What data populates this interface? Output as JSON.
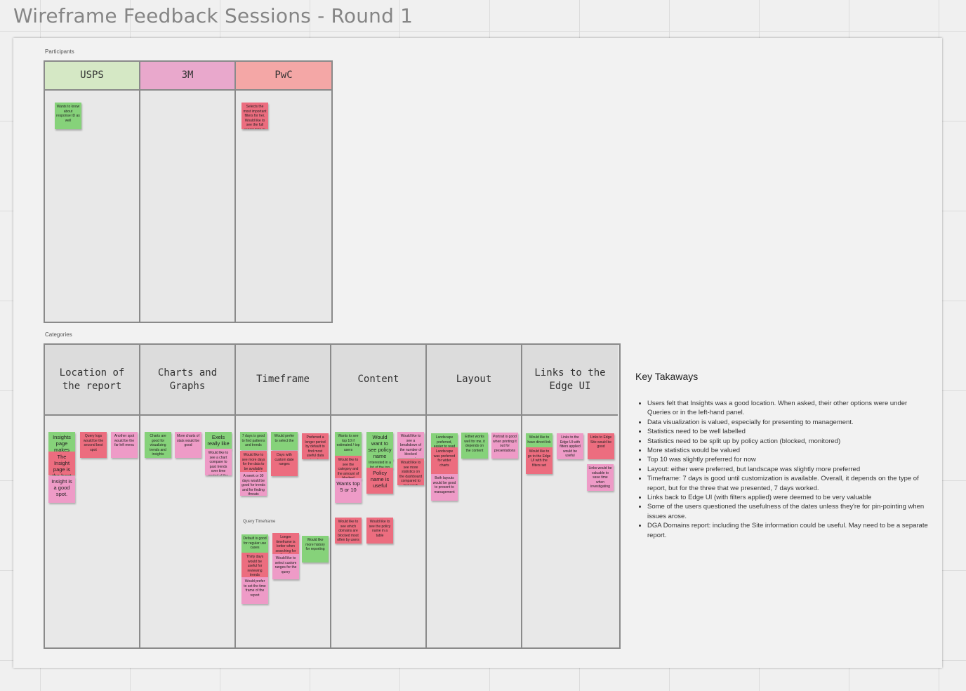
{
  "board": {
    "title": "Wireframe Feedback Sessions - Round 1"
  },
  "participants": {
    "caption": "Participants",
    "columns": [
      {
        "label": "USPS",
        "color": "#d5e8c5",
        "notes": [
          {
            "text": "Wants to know about response ID as well",
            "color": "green"
          }
        ]
      },
      {
        "label": "3M",
        "color": "#e9a8cc",
        "notes": []
      },
      {
        "label": "PwC",
        "color": "#f4a7a6",
        "notes": [
          {
            "text": "Selects the most important filters for her. Would like to see the full report data in one table",
            "color": "red"
          }
        ]
      }
    ]
  },
  "categories": {
    "caption": "Categories",
    "columns": [
      {
        "label": "Location of the report",
        "notes": [
          {
            "text": "Insights page makes sense",
            "color": "green"
          },
          {
            "text": "Query logs would be the second best spot",
            "color": "red"
          },
          {
            "text": "Another spot would be the far left menu",
            "color": "pink"
          },
          {
            "text": "The Insight page is the best edge location",
            "color": "red"
          },
          {
            "text": "Insight is a good spot.",
            "color": "pink"
          }
        ]
      },
      {
        "label": "Charts and Graphs",
        "notes": [
          {
            "text": "Charts are good for visualizing trends and insights",
            "color": "green"
          },
          {
            "text": "More charts of stats would be good",
            "color": "pink"
          },
          {
            "text": "Exels really like",
            "color": "green"
          },
          {
            "text": "Would like to see a chart compare to past trends over time period of the data",
            "color": "pink"
          }
        ]
      },
      {
        "label": "Timeframe",
        "notes": [
          {
            "text": "7 days is good to find patterns and trends",
            "color": "green"
          },
          {
            "text": "Would prefer to select the",
            "color": "green"
          },
          {
            "text": "Preferred a longer period by default to find most useful data trends",
            "color": "red"
          },
          {
            "text": "Would like to see more days for the data to be available and to find trends over time",
            "color": "red"
          },
          {
            "text": "Days with custom date ranges",
            "color": "red"
          },
          {
            "text": "A week or 30 days would be good for trends and for finding threats",
            "color": "pink"
          }
        ]
      },
      {
        "label": "Content",
        "notes": [
          {
            "text": "Wants to see top 10 if estimated / top users",
            "color": "green"
          },
          {
            "text": "Would want to see policy name",
            "color": "green"
          },
          {
            "text": "Would like to see a breakdown of the number of blocked requests",
            "color": "pink"
          },
          {
            "text": "Would like to see the category and the amount of blocked requests",
            "color": "red"
          },
          {
            "text": "Interested in a list of the top threats and domains",
            "color": "green"
          },
          {
            "text": "Would like to see more statistics on the dashboard compared to last week",
            "color": "red"
          },
          {
            "text": "Wants top 5 or 10",
            "color": "pink"
          },
          {
            "text": "Policy name is useful",
            "color": "red"
          },
          {
            "text": "Would like to see which domains are blocked most often by users",
            "color": "red"
          },
          {
            "text": "Would like to see the policy name in a table",
            "color": "red"
          }
        ]
      },
      {
        "label": "Layout",
        "notes": [
          {
            "text": "Landscape preferred, easier to read",
            "color": "green"
          },
          {
            "text": "Either works well for me, it depends on the content",
            "color": "green"
          },
          {
            "text": "Portrait is good when printing it out for presentations",
            "color": "pink"
          },
          {
            "text": "Landscape was preferred for wider charts",
            "color": "red"
          },
          {
            "text": "Both layouts would be good to present to management",
            "color": "pink"
          }
        ]
      },
      {
        "label": "Links to the Edge UI",
        "notes": [
          {
            "text": "Would like to have direct link",
            "color": "green"
          },
          {
            "text": "Links to the Edge UI with filters applied would be useful",
            "color": "pink"
          },
          {
            "text": "Links to Edge Site would be good",
            "color": "red"
          },
          {
            "text": "Would like to go to the Edge UI with the filters set",
            "color": "red"
          },
          {
            "text": "Links would be valuable to save time when investigating",
            "color": "pink"
          }
        ]
      }
    ],
    "query_timeframe": {
      "caption": "Query Timeframe",
      "notes": [
        {
          "text": "Default is good for regular use cases",
          "color": "green"
        },
        {
          "text": "Longer timeframe is better when searching for threats",
          "color": "red"
        },
        {
          "text": "Would like more history for reporting",
          "color": "green"
        },
        {
          "text": "Thirty days would be useful for reviewing trends",
          "color": "red"
        },
        {
          "text": "Would like to select custom ranges for the query",
          "color": "pink"
        },
        {
          "text": "Would prefer to set the time frame of the report",
          "color": "pink"
        }
      ]
    }
  },
  "takeaways": {
    "title": "Key Takaways",
    "items": [
      "Users felt that Insights was a good location. When asked, their other options were under Queries or in the left-hand panel.",
      "Data visualization is valued, especially for presenting to management.",
      "Statistics need to be well labelled",
      "Statistics need to be split up by policy action (blocked, monitored)",
      "More statistics would be valued",
      "Top 10 was slightly preferred for now",
      "Layout: either were preferred, but landscape was slightly more preferred",
      "Timeframe: 7 days is good until customization is available. Overall, it depends on the type of report, but for the three that we presented, 7 days worked.",
      "Links back to Edge UI (with filters applied) were deemed to be very valuable",
      "Some of the users questioned the usefulness of the dates unless they're for pin-pointing when issues arose.",
      "DGA Domains report: including the Site information could be useful. May need to be a separate report."
    ]
  }
}
